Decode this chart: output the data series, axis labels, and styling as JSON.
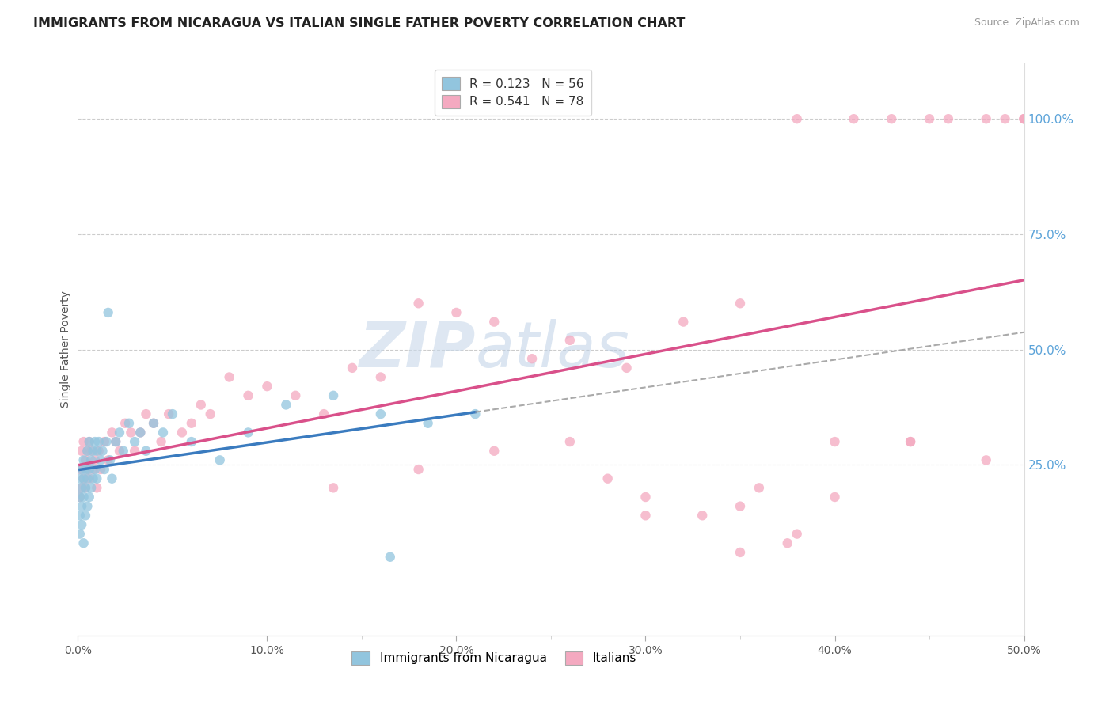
{
  "title": "IMMIGRANTS FROM NICARAGUA VS ITALIAN SINGLE FATHER POVERTY CORRELATION CHART",
  "source": "Source: ZipAtlas.com",
  "ylabel": "Single Father Poverty",
  "xlim": [
    0.0,
    0.5
  ],
  "ylim": [
    -0.12,
    1.12
  ],
  "xtick_labels": [
    "0.0%",
    "",
    "",
    "",
    "",
    "",
    "",
    "",
    "",
    "",
    "10.0%",
    "",
    "",
    "",
    "",
    "",
    "",
    "",
    "",
    "",
    "20.0%",
    "",
    "",
    "",
    "",
    "",
    "",
    "",
    "",
    "",
    "30.0%",
    "",
    "",
    "",
    "",
    "",
    "",
    "",
    "",
    "",
    "40.0%",
    "",
    "",
    "",
    "",
    "",
    "",
    "",
    "",
    "",
    "50.0%"
  ],
  "xtick_vals": [
    0.0,
    0.01,
    0.02,
    0.03,
    0.04,
    0.05,
    0.06,
    0.07,
    0.08,
    0.09,
    0.1,
    0.11,
    0.12,
    0.13,
    0.14,
    0.15,
    0.16,
    0.17,
    0.18,
    0.19,
    0.2,
    0.21,
    0.22,
    0.23,
    0.24,
    0.25,
    0.26,
    0.27,
    0.28,
    0.29,
    0.3,
    0.31,
    0.32,
    0.33,
    0.34,
    0.35,
    0.36,
    0.37,
    0.38,
    0.39,
    0.4,
    0.41,
    0.42,
    0.43,
    0.44,
    0.45,
    0.46,
    0.47,
    0.48,
    0.49,
    0.5
  ],
  "ytick_vals": [
    0.25,
    0.5,
    0.75,
    1.0
  ],
  "ytick_labels": [
    "25.0%",
    "50.0%",
    "75.0%",
    "100.0%"
  ],
  "legend_blue_label": "R = 0.123   N = 56",
  "legend_pink_label": "R = 0.541   N = 78",
  "legend_bottom_blue": "Immigrants from Nicaragua",
  "legend_bottom_pink": "Italians",
  "blue_color": "#92c5de",
  "pink_color": "#f4a9c0",
  "blue_line_color": "#3a7bbf",
  "pink_line_color": "#d9508a",
  "watermark_zip": "ZIP",
  "watermark_atlas": "atlas",
  "blue_scatter_x": [
    0.001,
    0.001,
    0.001,
    0.001,
    0.002,
    0.002,
    0.002,
    0.002,
    0.003,
    0.003,
    0.003,
    0.003,
    0.004,
    0.004,
    0.004,
    0.005,
    0.005,
    0.005,
    0.006,
    0.006,
    0.006,
    0.007,
    0.007,
    0.008,
    0.008,
    0.009,
    0.009,
    0.01,
    0.01,
    0.011,
    0.012,
    0.013,
    0.014,
    0.015,
    0.016,
    0.017,
    0.018,
    0.02,
    0.022,
    0.024,
    0.027,
    0.03,
    0.033,
    0.036,
    0.04,
    0.045,
    0.05,
    0.06,
    0.075,
    0.09,
    0.11,
    0.135,
    0.16,
    0.185,
    0.21,
    0.165
  ],
  "blue_scatter_y": [
    0.18,
    0.22,
    0.14,
    0.1,
    0.2,
    0.24,
    0.16,
    0.12,
    0.22,
    0.26,
    0.18,
    0.08,
    0.24,
    0.2,
    0.14,
    0.28,
    0.22,
    0.16,
    0.3,
    0.24,
    0.18,
    0.26,
    0.2,
    0.28,
    0.22,
    0.3,
    0.24,
    0.28,
    0.22,
    0.3,
    0.26,
    0.28,
    0.24,
    0.3,
    0.58,
    0.26,
    0.22,
    0.3,
    0.32,
    0.28,
    0.34,
    0.3,
    0.32,
    0.28,
    0.34,
    0.32,
    0.36,
    0.3,
    0.26,
    0.32,
    0.38,
    0.4,
    0.36,
    0.34,
    0.36,
    0.05
  ],
  "pink_scatter_x": [
    0.001,
    0.001,
    0.002,
    0.002,
    0.003,
    0.003,
    0.004,
    0.004,
    0.005,
    0.005,
    0.006,
    0.006,
    0.007,
    0.008,
    0.009,
    0.01,
    0.011,
    0.012,
    0.014,
    0.016,
    0.018,
    0.02,
    0.022,
    0.025,
    0.028,
    0.03,
    0.033,
    0.036,
    0.04,
    0.044,
    0.048,
    0.055,
    0.06,
    0.065,
    0.07,
    0.08,
    0.09,
    0.1,
    0.115,
    0.13,
    0.145,
    0.16,
    0.18,
    0.2,
    0.22,
    0.24,
    0.26,
    0.29,
    0.32,
    0.35,
    0.38,
    0.41,
    0.45,
    0.48,
    0.5,
    0.43,
    0.46,
    0.49,
    0.5,
    0.5,
    0.28,
    0.3,
    0.33,
    0.36,
    0.4,
    0.44,
    0.135,
    0.18,
    0.22,
    0.26,
    0.3,
    0.35,
    0.4,
    0.44,
    0.48,
    0.375,
    0.35,
    0.38
  ],
  "pink_scatter_y": [
    0.18,
    0.24,
    0.2,
    0.28,
    0.22,
    0.3,
    0.26,
    0.2,
    0.28,
    0.24,
    0.3,
    0.22,
    0.28,
    0.24,
    0.26,
    0.2,
    0.28,
    0.24,
    0.3,
    0.26,
    0.32,
    0.3,
    0.28,
    0.34,
    0.32,
    0.28,
    0.32,
    0.36,
    0.34,
    0.3,
    0.36,
    0.32,
    0.34,
    0.38,
    0.36,
    0.44,
    0.4,
    0.42,
    0.4,
    0.36,
    0.46,
    0.44,
    0.6,
    0.58,
    0.56,
    0.48,
    0.52,
    0.46,
    0.56,
    0.6,
    1.0,
    1.0,
    1.0,
    1.0,
    1.0,
    1.0,
    1.0,
    1.0,
    1.0,
    1.0,
    0.22,
    0.18,
    0.14,
    0.2,
    0.3,
    0.3,
    0.2,
    0.24,
    0.28,
    0.3,
    0.14,
    0.16,
    0.18,
    0.3,
    0.26,
    0.08,
    0.06,
    0.1
  ]
}
